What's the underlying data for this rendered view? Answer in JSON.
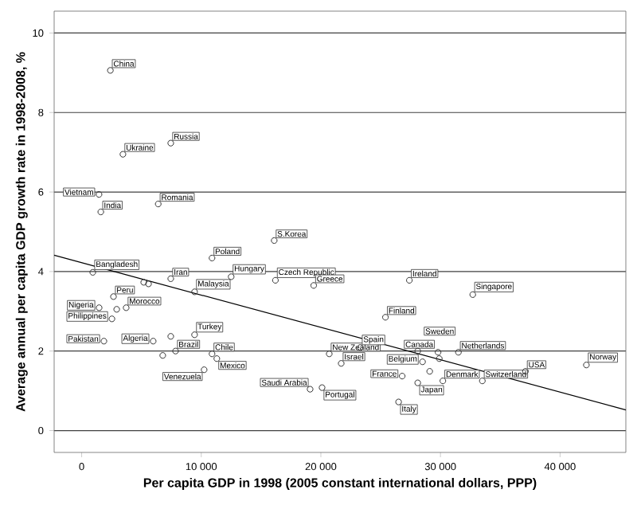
{
  "chart_data": {
    "type": "scatter",
    "xlabel": "Per capita GDP in 1998 (2005 constant international dollars, PPP)",
    "ylabel": "Average annual per capita GDP growth rate in 1998-2008, %",
    "xlim": [
      -2300,
      45500
    ],
    "ylim": [
      -0.55,
      10.55
    ],
    "xticks": [
      {
        "value": 0,
        "label": "0"
      },
      {
        "value": 10000,
        "label": "10 000"
      },
      {
        "value": 20000,
        "label": "20 000"
      },
      {
        "value": 30000,
        "label": "30 000"
      },
      {
        "value": 40000,
        "label": "40 000"
      }
    ],
    "yticks": [
      0,
      2,
      4,
      6,
      8,
      10
    ],
    "grid": "y",
    "marker": "circle",
    "series": [
      {
        "color": "#333333",
        "x": [
          2400,
          3450,
          7450,
          1450,
          1600,
          6400,
          16100,
          10900,
          930,
          7450,
          12500,
          16200,
          19400,
          5190,
          5590,
          9440,
          2660,
          1460,
          2530,
          3720,
          2930,
          9440,
          7450,
          1860,
          5980,
          7850,
          6780,
          10900,
          11300,
          10240,
          20700,
          21700,
          19100,
          20100,
          27400,
          32700,
          25400,
          23300,
          28100,
          29800,
          31500,
          29900,
          28500,
          29100,
          26800,
          28100,
          30200,
          33500,
          37100,
          42200,
          26500
        ],
        "values": [
          9.06,
          6.95,
          7.23,
          5.94,
          5.5,
          5.7,
          4.78,
          4.34,
          3.98,
          3.82,
          3.87,
          3.78,
          3.65,
          3.73,
          3.69,
          3.49,
          3.37,
          3.09,
          2.81,
          3.09,
          3.05,
          2.41,
          2.37,
          2.25,
          2.25,
          2.0,
          1.89,
          1.93,
          1.81,
          1.53,
          1.93,
          1.69,
          1.04,
          1.08,
          3.78,
          3.42,
          2.85,
          2.09,
          2.0,
          1.97,
          1.97,
          1.81,
          1.73,
          1.49,
          1.37,
          1.2,
          1.25,
          1.25,
          1.49,
          1.65,
          0.72
        ],
        "value_labels": [
          "China",
          "Ukraine",
          "Russia",
          "Vietnam",
          "India",
          "Romania",
          "S.Korea",
          "Poland",
          "Bangladesh",
          "Iran",
          "Hungary",
          "Czech Republic",
          "Greece",
          null,
          null,
          "Malaysia",
          "Peru",
          "Nigeria",
          "Philippines",
          "Morocco",
          null,
          "Turkey",
          null,
          "Pakistan",
          "Algeria",
          "Brazil",
          null,
          "Chile",
          "Mexico",
          "Venezuela",
          "New Zealand",
          "Israel",
          "Saudi Arabia",
          "Portugal",
          "Ireland",
          "Singapore",
          "Finland",
          "Spain",
          "Canada",
          "Sweden",
          "Netherlands",
          null,
          "Belgium",
          null,
          "France",
          "Japan",
          "Denmark",
          "Switzerland",
          "USA",
          "Norway",
          "Italy"
        ]
      },
      {
        "type": "line",
        "color": "#000000",
        "marker": "none",
        "x": [
          -2300,
          45500
        ],
        "values": [
          4.41,
          0.52
        ]
      }
    ]
  }
}
